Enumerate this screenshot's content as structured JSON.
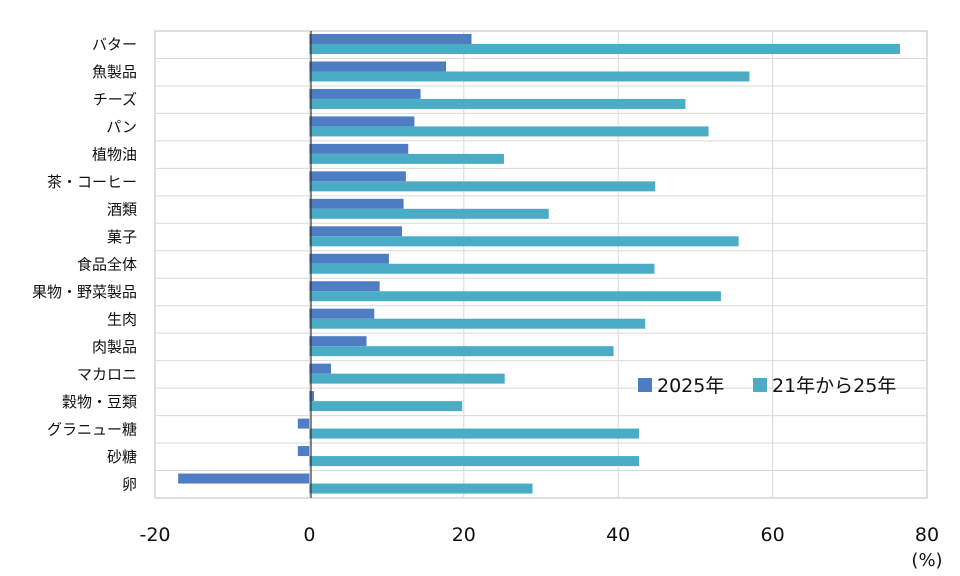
{
  "chart_data": {
    "type": "bar",
    "orientation": "horizontal",
    "categories": [
      "バター",
      "魚製品",
      "チーズ",
      "パン",
      "植物油",
      "茶・コーヒー",
      "酒類",
      "菓子",
      "食品全体",
      "果物・野菜製品",
      "生肉",
      "肉製品",
      "マカロニ",
      "穀物・豆類",
      "グラニュー糖",
      "砂糖",
      "卵"
    ],
    "series": [
      {
        "name": "2025年",
        "color": "#4f7dc4",
        "values": [
          21.0,
          17.7,
          14.4,
          13.6,
          12.8,
          12.5,
          12.2,
          12.0,
          10.3,
          9.1,
          8.4,
          7.4,
          2.8,
          0.6,
          -1.5,
          -1.5,
          -17.0
        ]
      },
      {
        "name": "21年から25年",
        "color": "#4bacc6",
        "values": [
          76.5,
          57.0,
          48.7,
          51.7,
          25.2,
          44.8,
          31.0,
          55.6,
          44.7,
          53.3,
          43.5,
          39.4,
          25.3,
          19.8,
          42.7,
          42.7,
          28.9
        ]
      }
    ],
    "xlim": [
      -20,
      80
    ],
    "xticks": [
      "-20",
      "0",
      "20",
      "40",
      "60",
      "80"
    ],
    "x_unit": "(%)",
    "grid": true,
    "legend_position": "right"
  }
}
